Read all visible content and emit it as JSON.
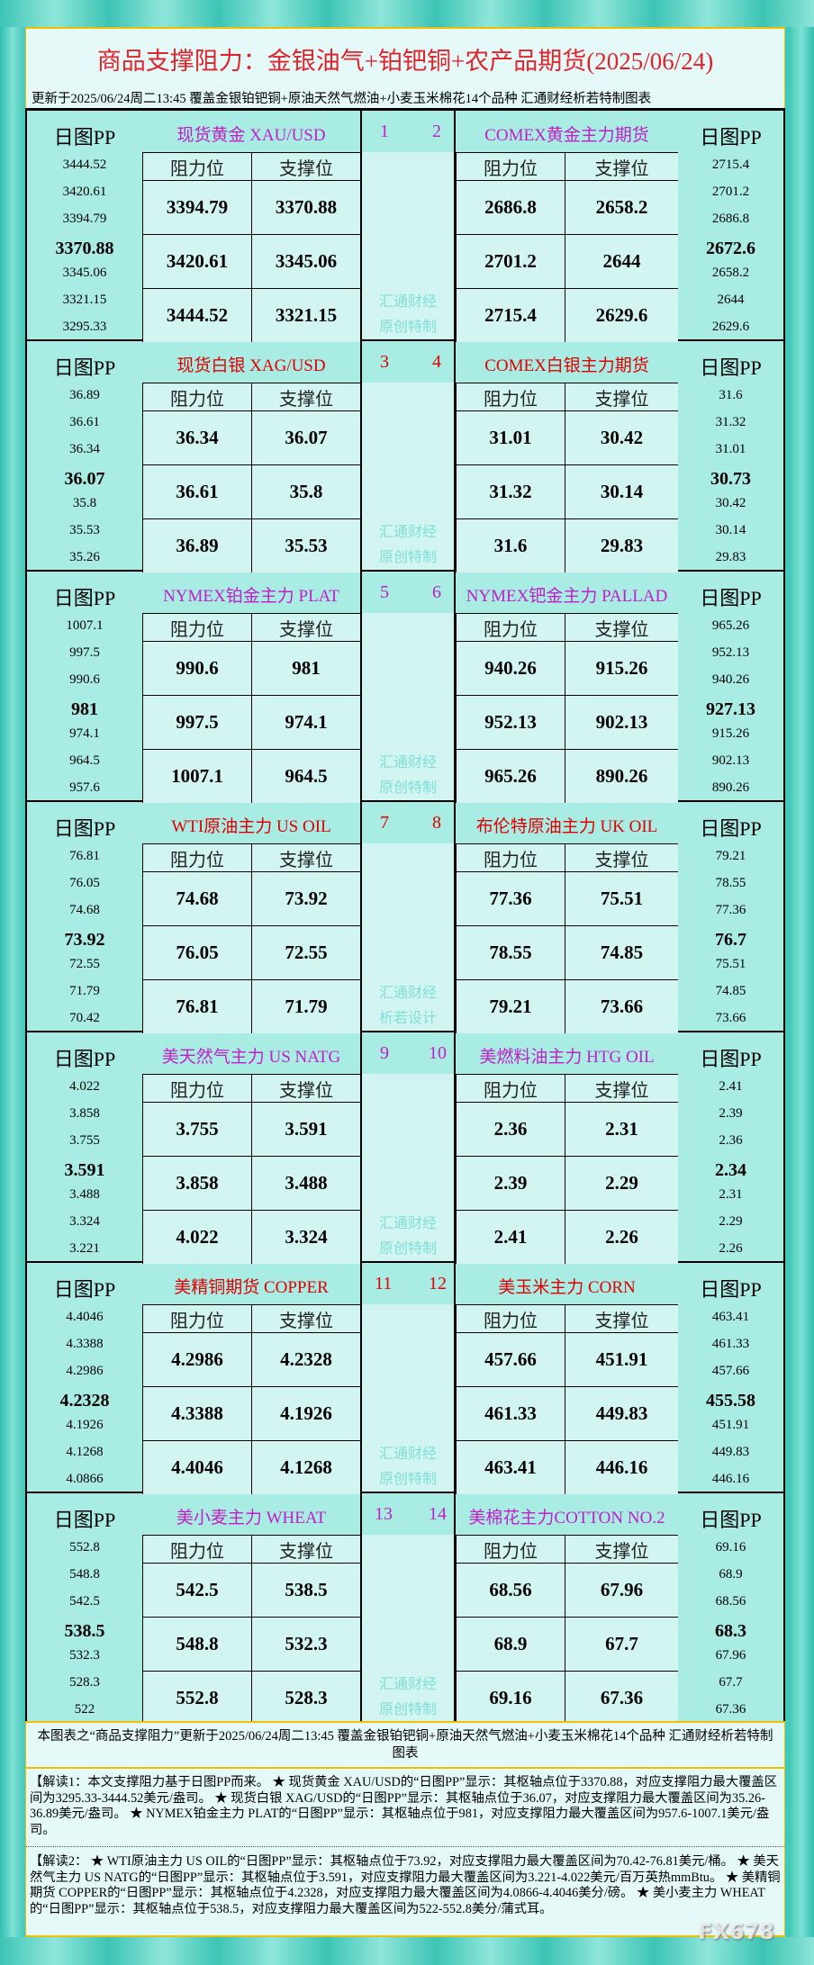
{
  "title": "商品支撑阻力：金银油气+铂钯铜+农产品期货(2025/06/24)",
  "subtitle": "更新于2025/06/24周二13:45 覆盖金银铂钯铜+原油天然气燃油+小麦玉米棉花14个品种 汇通财经析若特制图表",
  "labels": {
    "pp": "日图PP",
    "resistance": "阻力位",
    "support": "支撑位"
  },
  "colors": {
    "red": "#e00000",
    "purple": "#c020c8"
  },
  "sections": [
    {
      "watermark": [
        "汇通财经",
        "原创特制"
      ],
      "left": {
        "no": "1",
        "name": "现货黄金 XAU/USD",
        "color": "purple",
        "pp": [
          "3444.52",
          "3420.61",
          "3394.79",
          "3370.88",
          "3345.06",
          "3321.15",
          "3295.33"
        ],
        "rows": [
          [
            "3394.79",
            "3370.88"
          ],
          [
            "3420.61",
            "3345.06"
          ],
          [
            "3444.52",
            "3321.15"
          ]
        ]
      },
      "right": {
        "no": "2",
        "name": "COMEX黄金主力期货",
        "color": "purple",
        "pp": [
          "2715.4",
          "2701.2",
          "2686.8",
          "2672.6",
          "2658.2",
          "2644",
          "2629.6"
        ],
        "rows": [
          [
            "2686.8",
            "2658.2"
          ],
          [
            "2701.2",
            "2644"
          ],
          [
            "2715.4",
            "2629.6"
          ]
        ]
      }
    },
    {
      "watermark": [
        "汇通财经",
        "原创特制"
      ],
      "left": {
        "no": "3",
        "name": "现货白银 XAG/USD",
        "color": "red",
        "pp": [
          "36.89",
          "36.61",
          "36.34",
          "36.07",
          "35.8",
          "35.53",
          "35.26"
        ],
        "rows": [
          [
            "36.34",
            "36.07"
          ],
          [
            "36.61",
            "35.8"
          ],
          [
            "36.89",
            "35.53"
          ]
        ]
      },
      "right": {
        "no": "4",
        "name": "COMEX白银主力期货",
        "color": "red",
        "pp": [
          "31.6",
          "31.32",
          "31.01",
          "30.73",
          "30.42",
          "30.14",
          "29.83"
        ],
        "rows": [
          [
            "31.01",
            "30.42"
          ],
          [
            "31.32",
            "30.14"
          ],
          [
            "31.6",
            "29.83"
          ]
        ]
      }
    },
    {
      "watermark": [
        "汇通财经",
        "原创特制"
      ],
      "left": {
        "no": "5",
        "name": "NYMEX铂金主力 PLAT",
        "color": "purple",
        "pp": [
          "1007.1",
          "997.5",
          "990.6",
          "981",
          "974.1",
          "964.5",
          "957.6"
        ],
        "rows": [
          [
            "990.6",
            "981"
          ],
          [
            "997.5",
            "974.1"
          ],
          [
            "1007.1",
            "964.5"
          ]
        ]
      },
      "right": {
        "no": "6",
        "name": "NYMEX钯金主力 PALLAD",
        "color": "purple",
        "pp": [
          "965.26",
          "952.13",
          "940.26",
          "927.13",
          "915.26",
          "902.13",
          "890.26"
        ],
        "rows": [
          [
            "940.26",
            "915.26"
          ],
          [
            "952.13",
            "902.13"
          ],
          [
            "965.26",
            "890.26"
          ]
        ]
      }
    },
    {
      "watermark": [
        "汇通财经",
        "析若设计"
      ],
      "left": {
        "no": "7",
        "name": "WTI原油主力 US OIL",
        "color": "red",
        "pp": [
          "76.81",
          "76.05",
          "74.68",
          "73.92",
          "72.55",
          "71.79",
          "70.42"
        ],
        "rows": [
          [
            "74.68",
            "73.92"
          ],
          [
            "76.05",
            "72.55"
          ],
          [
            "76.81",
            "71.79"
          ]
        ]
      },
      "right": {
        "no": "8",
        "name": "布伦特原油主力 UK OIL",
        "color": "red",
        "pp": [
          "79.21",
          "78.55",
          "77.36",
          "76.7",
          "75.51",
          "74.85",
          "73.66"
        ],
        "rows": [
          [
            "77.36",
            "75.51"
          ],
          [
            "78.55",
            "74.85"
          ],
          [
            "79.21",
            "73.66"
          ]
        ]
      }
    },
    {
      "watermark": [
        "汇通财经",
        "原创特制"
      ],
      "left": {
        "no": "9",
        "name": "美天然气主力 US NATG",
        "color": "purple",
        "pp": [
          "4.022",
          "3.858",
          "3.755",
          "3.591",
          "3.488",
          "3.324",
          "3.221"
        ],
        "rows": [
          [
            "3.755",
            "3.591"
          ],
          [
            "3.858",
            "3.488"
          ],
          [
            "4.022",
            "3.324"
          ]
        ]
      },
      "right": {
        "no": "10",
        "name": "美燃料油主力 HTG OIL",
        "color": "purple",
        "pp": [
          "2.41",
          "2.39",
          "2.36",
          "2.34",
          "2.31",
          "2.29",
          "2.26"
        ],
        "rows": [
          [
            "2.36",
            "2.31"
          ],
          [
            "2.39",
            "2.29"
          ],
          [
            "2.41",
            "2.26"
          ]
        ]
      }
    },
    {
      "watermark": [
        "汇通财经",
        "原创特制"
      ],
      "left": {
        "no": "11",
        "name": "美精铜期货 COPPER",
        "color": "red",
        "pp": [
          "4.4046",
          "4.3388",
          "4.2986",
          "4.2328",
          "4.1926",
          "4.1268",
          "4.0866"
        ],
        "rows": [
          [
            "4.2986",
            "4.2328"
          ],
          [
            "4.3388",
            "4.1926"
          ],
          [
            "4.4046",
            "4.1268"
          ]
        ]
      },
      "right": {
        "no": "12",
        "name": "美玉米主力 CORN",
        "color": "red",
        "pp": [
          "463.41",
          "461.33",
          "457.66",
          "455.58",
          "451.91",
          "449.83",
          "446.16"
        ],
        "rows": [
          [
            "457.66",
            "451.91"
          ],
          [
            "461.33",
            "449.83"
          ],
          [
            "463.41",
            "446.16"
          ]
        ]
      }
    },
    {
      "watermark": [
        "汇通财经",
        "原创特制"
      ],
      "left": {
        "no": "13",
        "name": "美小麦主力 WHEAT",
        "color": "purple",
        "pp": [
          "552.8",
          "548.8",
          "542.5",
          "538.5",
          "532.3",
          "528.3",
          "522"
        ],
        "rows": [
          [
            "542.5",
            "538.5"
          ],
          [
            "548.8",
            "532.3"
          ],
          [
            "552.8",
            "528.3"
          ]
        ]
      },
      "right": {
        "no": "14",
        "name": "美棉花主力COTTON NO.2",
        "color": "purple",
        "pp": [
          "69.16",
          "68.9",
          "68.56",
          "68.3",
          "67.96",
          "67.7",
          "67.36"
        ],
        "rows": [
          [
            "68.56",
            "67.96"
          ],
          [
            "68.9",
            "67.7"
          ],
          [
            "69.16",
            "67.36"
          ]
        ]
      }
    }
  ],
  "footer_note": "本图表之“商品支撑阻力”更新于2025/06/24周二13:45 覆盖金银铂钯铜+原油天然气燃油+小麦玉米棉花14个品种 汇通财经析若特制图表",
  "analysis1": "【解读1：本文支撑阻力基于日图PP而来。 ★ 现货黄金 XAU/USD的“日图PP”显示：其枢轴点位于3370.88，对应支撑阻力最大覆盖区间为3295.33-3444.52美元/盎司。 ★ 现货白银 XAG/USD的“日图PP”显示：其枢轴点位于36.07，对应支撑阻力最大覆盖区间为35.26-36.89美元/盎司。 ★ NYMEX铂金主力 PLAT的“日图PP”显示：其枢轴点位于981，对应支撑阻力最大覆盖区间为957.6-1007.1美元/盎司。",
  "analysis2": "【解读2： ★ WTI原油主力 US OIL的“日图PP”显示：其枢轴点位于73.92，对应支撑阻力最大覆盖区间为70.42-76.81美元/桶。 ★ 美天然气主力 US NATG的“日图PP”显示：其枢轴点位于3.591，对应支撑阻力最大覆盖区间为3.221-4.022美元/百万英热mmBtu。 ★ 美精铜期货 COPPER的“日图PP”显示：其枢轴点位于4.2328，对应支撑阻力最大覆盖区间为4.0866-4.4046美分/磅。 ★ 美小麦主力 WHEAT的“日图PP”显示：其枢轴点位于538.5，对应支撑阻力最大覆盖区间为522-552.8美分/蒲式耳。",
  "watermark_logo": "FX678"
}
